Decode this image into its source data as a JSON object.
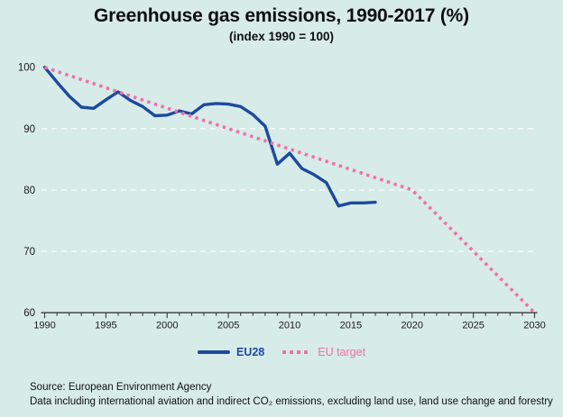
{
  "header": {
    "title": "Greenhouse gas emissions, 1990-2017 (%)",
    "subtitle": "(index 1990 = 100)"
  },
  "legend": {
    "items": [
      {
        "label": "EU28",
        "style": "solid",
        "color": "#1d4a9e"
      },
      {
        "label": "EU target",
        "style": "dotted",
        "color": "#f36fa8"
      }
    ]
  },
  "footer": {
    "source_line": "Source: European Environment Agency",
    "note_line": "Data including international aviation and indirect CO₂ emissions, excluding land use, land use change and forestry"
  },
  "colors": {
    "background": "#d7ebe9",
    "eu28_line": "#1d4a9e",
    "target_line": "#f36fa8",
    "axis": "#3a3a3a",
    "tick_label": "#1a1a1a",
    "gridline": "rgba(255,255,255,0.85)"
  },
  "chart_data": {
    "type": "line",
    "title": "Greenhouse gas emissions, 1990-2017 (%)",
    "subtitle": "(index 1990 = 100)",
    "xlabel": "",
    "ylabel": "",
    "xlim": [
      1990,
      2030
    ],
    "ylim": [
      60,
      100
    ],
    "x_ticks_major": [
      1990,
      1995,
      2000,
      2005,
      2010,
      2015,
      2020,
      2025,
      2030
    ],
    "x_tick_minor_step": 1,
    "y_ticks": [
      100,
      90,
      80,
      70,
      60
    ],
    "gridlines_y": [
      90,
      80,
      70
    ],
    "grid": "faint dashed white horizontal lines",
    "legend_position": "bottom",
    "series": [
      {
        "name": "EU28",
        "style": "solid",
        "color": "#1d4a9e",
        "x": [
          1990,
          1991,
          1992,
          1993,
          1994,
          1995,
          1996,
          1997,
          1998,
          1999,
          2000,
          2001,
          2002,
          2003,
          2004,
          2005,
          2006,
          2007,
          2008,
          2009,
          2010,
          2011,
          2012,
          2013,
          2014,
          2015,
          2016,
          2017
        ],
        "values": [
          100,
          97.6,
          95.3,
          93.5,
          93.3,
          94.7,
          96.0,
          94.6,
          93.6,
          92.1,
          92.2,
          92.9,
          92.4,
          93.9,
          94.1,
          94.0,
          93.6,
          92.3,
          90.4,
          84.2,
          86.0,
          83.5,
          82.5,
          81.2,
          77.4,
          77.9,
          77.9,
          78.0
        ]
      },
      {
        "name": "EU target",
        "style": "dotted",
        "color": "#f36fa8",
        "x": [
          1990,
          2020,
          2030
        ],
        "values": [
          100,
          80,
          60
        ]
      }
    ]
  }
}
